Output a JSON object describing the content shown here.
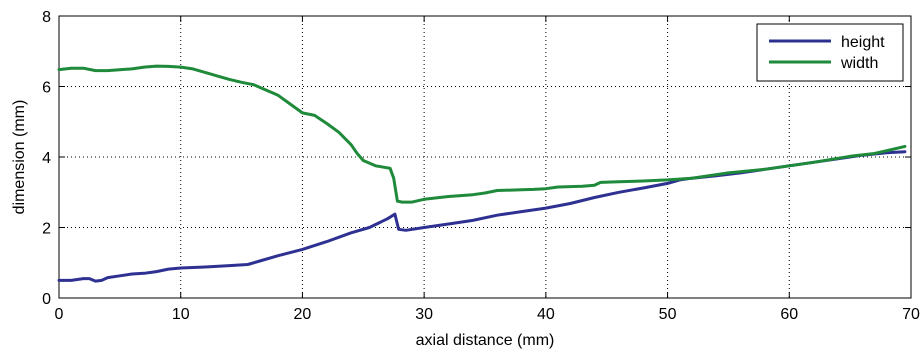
{
  "chart_data": {
    "type": "line",
    "title": "",
    "xlabel": "axial distance (mm)",
    "ylabel": "dimension (mm)",
    "xlim": [
      0,
      70
    ],
    "ylim": [
      0,
      8
    ],
    "xticks": [
      0,
      10,
      20,
      30,
      40,
      50,
      60,
      70
    ],
    "yticks": [
      0,
      2,
      4,
      6,
      8
    ],
    "xtick_labels": [
      "0",
      "10",
      "20",
      "30",
      "40",
      "50",
      "60",
      "70"
    ],
    "ytick_labels": [
      "0",
      "2",
      "4",
      "6",
      "8"
    ],
    "grid": true,
    "grid_style": "dotted",
    "legend_position": "top-right",
    "series": [
      {
        "name": "height",
        "color": "#2e3192",
        "points": [
          [
            0,
            0.5
          ],
          [
            1,
            0.5
          ],
          [
            2,
            0.55
          ],
          [
            2.5,
            0.55
          ],
          [
            3,
            0.48
          ],
          [
            3.5,
            0.5
          ],
          [
            4,
            0.58
          ],
          [
            5,
            0.63
          ],
          [
            6,
            0.68
          ],
          [
            7,
            0.7
          ],
          [
            8,
            0.75
          ],
          [
            9,
            0.82
          ],
          [
            10,
            0.85
          ],
          [
            12,
            0.88
          ],
          [
            14,
            0.92
          ],
          [
            15.5,
            0.95
          ],
          [
            16.5,
            1.05
          ],
          [
            18,
            1.2
          ],
          [
            20,
            1.38
          ],
          [
            22,
            1.6
          ],
          [
            24,
            1.85
          ],
          [
            25.5,
            2.0
          ],
          [
            27,
            2.25
          ],
          [
            27.6,
            2.38
          ],
          [
            27.9,
            1.95
          ],
          [
            28.5,
            1.92
          ],
          [
            30,
            2.0
          ],
          [
            32,
            2.1
          ],
          [
            34,
            2.2
          ],
          [
            36,
            2.35
          ],
          [
            38,
            2.45
          ],
          [
            40,
            2.55
          ],
          [
            42,
            2.68
          ],
          [
            44,
            2.85
          ],
          [
            46,
            3.0
          ],
          [
            48,
            3.12
          ],
          [
            50,
            3.25
          ],
          [
            51,
            3.35
          ],
          [
            52,
            3.4
          ],
          [
            54,
            3.47
          ],
          [
            56,
            3.55
          ],
          [
            58,
            3.65
          ],
          [
            60,
            3.75
          ],
          [
            62,
            3.85
          ],
          [
            64,
            3.95
          ],
          [
            66,
            4.05
          ],
          [
            68,
            4.12
          ],
          [
            69.5,
            4.15
          ]
        ]
      },
      {
        "name": "width",
        "color": "#1e8a3a",
        "points": [
          [
            0,
            6.48
          ],
          [
            1,
            6.52
          ],
          [
            2,
            6.52
          ],
          [
            3,
            6.45
          ],
          [
            4,
            6.45
          ],
          [
            6,
            6.5
          ],
          [
            7,
            6.55
          ],
          [
            8,
            6.58
          ],
          [
            9,
            6.57
          ],
          [
            10,
            6.55
          ],
          [
            11,
            6.5
          ],
          [
            12,
            6.4
          ],
          [
            13,
            6.3
          ],
          [
            14,
            6.2
          ],
          [
            15,
            6.12
          ],
          [
            16,
            6.05
          ],
          [
            17,
            5.9
          ],
          [
            18,
            5.75
          ],
          [
            19,
            5.5
          ],
          [
            20,
            5.25
          ],
          [
            21,
            5.18
          ],
          [
            22,
            4.95
          ],
          [
            23,
            4.7
          ],
          [
            24,
            4.35
          ],
          [
            24.5,
            4.1
          ],
          [
            25,
            3.9
          ],
          [
            26,
            3.75
          ],
          [
            27.2,
            3.68
          ],
          [
            27.5,
            3.4
          ],
          [
            27.8,
            2.75
          ],
          [
            28.2,
            2.72
          ],
          [
            29,
            2.72
          ],
          [
            30,
            2.8
          ],
          [
            32,
            2.88
          ],
          [
            34,
            2.93
          ],
          [
            35,
            2.98
          ],
          [
            36,
            3.05
          ],
          [
            38,
            3.07
          ],
          [
            39,
            3.08
          ],
          [
            40,
            3.1
          ],
          [
            41,
            3.15
          ],
          [
            43,
            3.17
          ],
          [
            44,
            3.2
          ],
          [
            44.5,
            3.28
          ],
          [
            46,
            3.3
          ],
          [
            48,
            3.32
          ],
          [
            50,
            3.35
          ],
          [
            52,
            3.4
          ],
          [
            55,
            3.55
          ],
          [
            58,
            3.65
          ],
          [
            60,
            3.75
          ],
          [
            62,
            3.85
          ],
          [
            65,
            4.02
          ],
          [
            67,
            4.1
          ],
          [
            68,
            4.18
          ],
          [
            69.5,
            4.3
          ]
        ]
      }
    ]
  }
}
